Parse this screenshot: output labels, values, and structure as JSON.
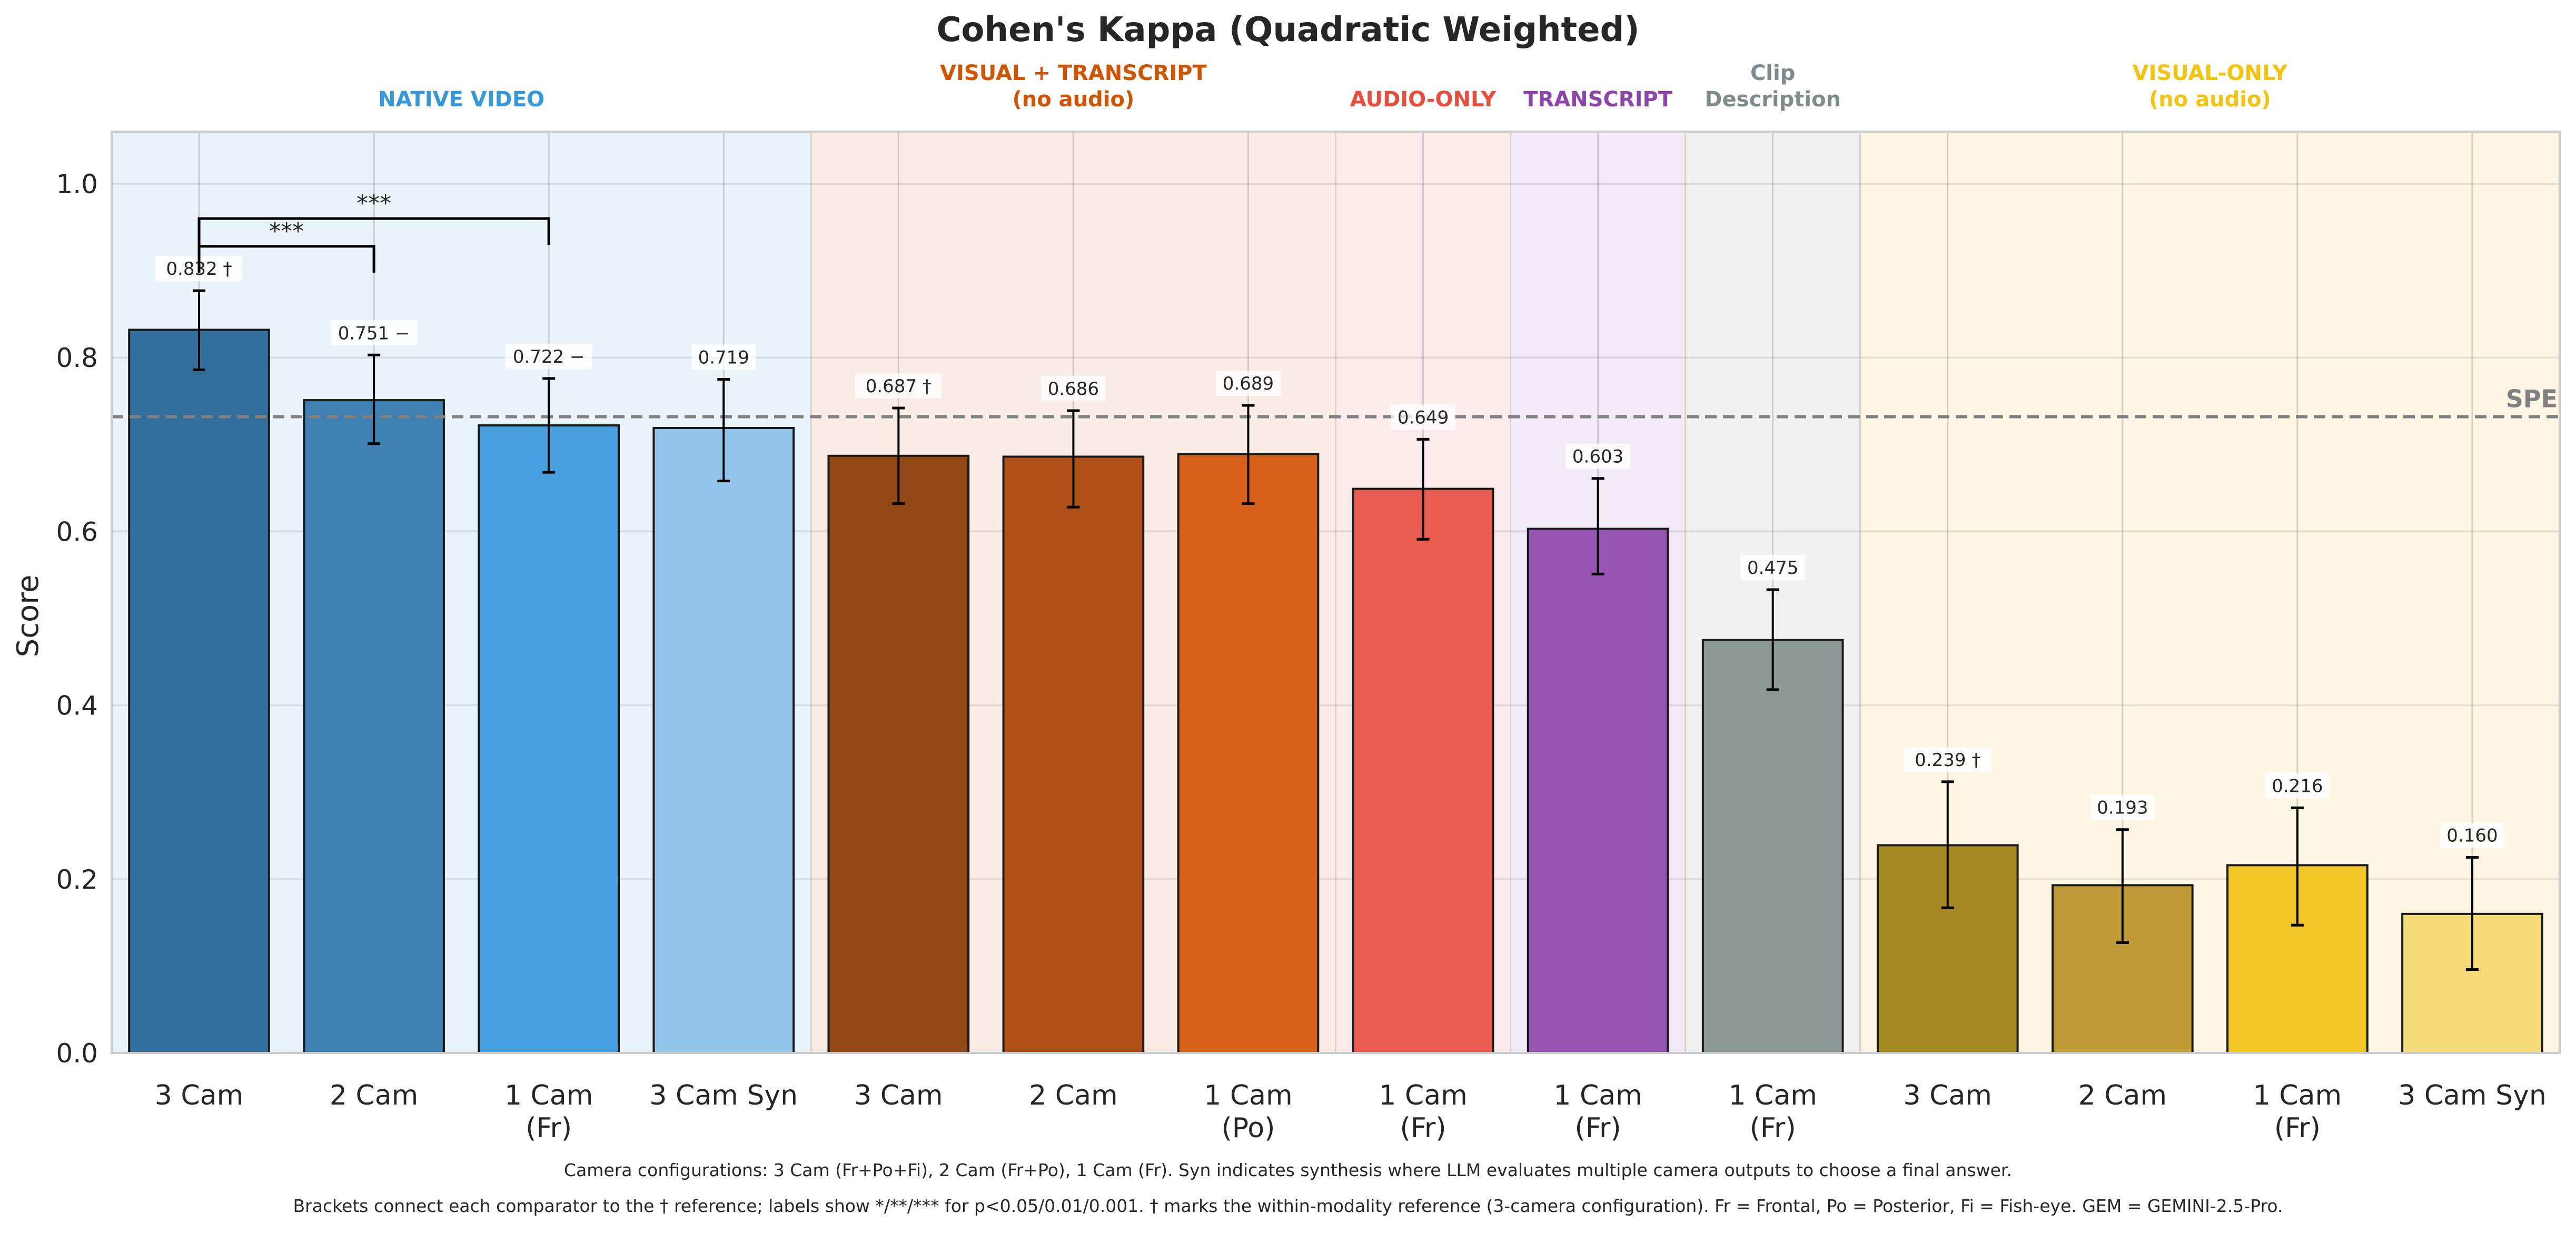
{
  "chart_data": {
    "type": "bar",
    "title": "Cohen's Kappa (Quadratic Weighted)",
    "xlabel": "",
    "ylabel": "Score",
    "ylim": [
      0,
      1.06
    ],
    "yticks": [
      "0.0",
      "0.2",
      "0.4",
      "0.6",
      "0.8",
      "1.0"
    ],
    "ytick_values": [
      0,
      0.2,
      0.4,
      0.6,
      0.8,
      1.0
    ],
    "grid": true,
    "groups": [
      {
        "label": "NATIVE VIDEO",
        "label2": "",
        "color": "#3498db",
        "bg": "#e9f3fa",
        "start": 0,
        "end": 3
      },
      {
        "label": "VISUAL + TRANSCRIPT",
        "label2": "(no audio)",
        "color": "#d35400",
        "bg": "#f9ece4",
        "start": 4,
        "end": 6
      },
      {
        "label": "AUDIO-ONLY",
        "label2": "",
        "color": "#e74c3c",
        "bg": "#fbebeb",
        "start": 7,
        "end": 7
      },
      {
        "label": "TRANSCRIPT",
        "label2": "",
        "color": "#8e44ad",
        "bg": "#f1e9f6",
        "start": 8,
        "end": 8
      },
      {
        "label": "Clip",
        "label2": "Description",
        "color": "#7f8c8d",
        "bg": "#f0f1f1",
        "start": 9,
        "end": 9
      },
      {
        "label": "VISUAL-ONLY",
        "label2": "(no audio)",
        "color": "#f1c40f",
        "bg": "#fdf6e5",
        "start": 10,
        "end": 13
      }
    ],
    "categories": [
      {
        "line1": "3 Cam",
        "line2": ""
      },
      {
        "line1": "2 Cam",
        "line2": ""
      },
      {
        "line1": "1 Cam",
        "line2": "(Fr)"
      },
      {
        "line1": "3 Cam Syn",
        "line2": ""
      },
      {
        "line1": "3 Cam",
        "line2": ""
      },
      {
        "line1": "2 Cam",
        "line2": ""
      },
      {
        "line1": "1 Cam",
        "line2": "(Po)"
      },
      {
        "line1": "1 Cam",
        "line2": "(Fr)"
      },
      {
        "line1": "1 Cam",
        "line2": "(Fr)"
      },
      {
        "line1": "1 Cam",
        "line2": "(Fr)"
      },
      {
        "line1": "3 Cam",
        "line2": ""
      },
      {
        "line1": "2 Cam",
        "line2": ""
      },
      {
        "line1": "1 Cam",
        "line2": "(Fr)"
      },
      {
        "line1": "3 Cam Syn",
        "line2": ""
      }
    ],
    "values": [
      0.832,
      0.751,
      0.722,
      0.719,
      0.687,
      0.686,
      0.689,
      0.649,
      0.603,
      0.475,
      0.239,
      0.193,
      0.216,
      0.16
    ],
    "value_labels": [
      "0.832 †",
      "0.751 −",
      "0.722 −",
      "0.719",
      "0.687 †",
      "0.686",
      "0.689",
      "0.649",
      "0.603",
      "0.475",
      "0.239 †",
      "0.193",
      "0.216",
      "0.160"
    ],
    "ci_low": [
      0.786,
      0.701,
      0.668,
      0.658,
      0.632,
      0.628,
      0.632,
      0.591,
      0.551,
      0.418,
      0.167,
      0.127,
      0.147,
      0.096
    ],
    "ci_high": [
      0.877,
      0.803,
      0.776,
      0.775,
      0.742,
      0.739,
      0.745,
      0.706,
      0.661,
      0.533,
      0.312,
      0.257,
      0.282,
      0.225
    ],
    "bar_colors": [
      "#336f9c",
      "#3d80b1",
      "#48a1de",
      "#91c5e9",
      "#914716",
      "#ad4f17",
      "#d66219",
      "#e85b4e",
      "#9654b2",
      "#8c9798",
      "#a68822",
      "#c09a36",
      "#f0c726",
      "#f5dc78"
    ],
    "reference_line": {
      "label": "SPE",
      "value": 0.732,
      "color": "#808080"
    },
    "brackets": [
      {
        "from": 0,
        "to": 1,
        "level": 0.928,
        "label": "***"
      },
      {
        "from": 0,
        "to": 2,
        "level": 0.96,
        "label": "***"
      }
    ],
    "footnotes": [
      "Camera configurations: 3 Cam (Fr+Po+Fi), 2 Cam (Fr+Po), 1 Cam (Fr). Syn indicates synthesis where LLM evaluates multiple camera outputs to choose a final answer.",
      "Brackets connect each comparator to the † reference; labels show */**/*** for p<0.05/0.01/0.001. † marks the within-modality reference (3-camera configuration). Fr = Frontal, Po = Posterior, Fi = Fish-eye. GEM = GEMINI-2.5-Pro."
    ]
  }
}
